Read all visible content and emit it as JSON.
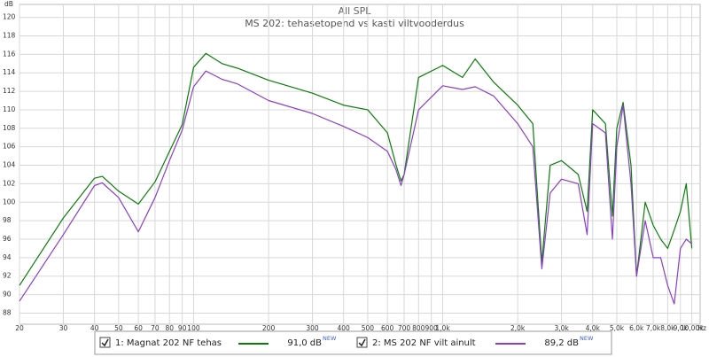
{
  "chart_data": {
    "type": "line",
    "title": "All SPL",
    "subtitle": "MS 202: tehasetopend vs kasti viltvooderdus",
    "y_label": "dB",
    "x_label": "Hz",
    "xscale": "log",
    "grid": true,
    "xlim": [
      20,
      10800
    ],
    "ylim": [
      86.8,
      121.4
    ],
    "yticks": [
      88,
      90,
      92,
      94,
      96,
      98,
      100,
      102,
      104,
      106,
      108,
      110,
      112,
      114,
      116,
      118,
      120
    ],
    "xticks": [
      20,
      30,
      40,
      50,
      60,
      70,
      80,
      90,
      100,
      200,
      300,
      400,
      500,
      600,
      700,
      800,
      900,
      {
        "value": 1000,
        "label": "1,0k"
      },
      {
        "value": 2000,
        "label": "2,0k"
      },
      {
        "value": 3000,
        "label": "3,0k"
      },
      {
        "value": 4000,
        "label": "4,0k"
      },
      {
        "value": 5000,
        "label": "5,0k"
      },
      {
        "value": 6000,
        "label": "6,0k"
      },
      {
        "value": 7000,
        "label": "7,0k"
      },
      {
        "value": 8000,
        "label": "8,0k"
      },
      {
        "value": 9000,
        "label": "9,0k"
      },
      {
        "value": 10000,
        "label": "10,00k"
      }
    ],
    "x": [
      20,
      30,
      40,
      43,
      50,
      60,
      70,
      80,
      90,
      100,
      112,
      130,
      150,
      200,
      300,
      400,
      500,
      600,
      650,
      680,
      700,
      800,
      1000,
      1200,
      1350,
      1600,
      2000,
      2300,
      2500,
      2700,
      3000,
      3500,
      3800,
      4000,
      4500,
      4800,
      5000,
      5300,
      5700,
      6000,
      6500,
      7000,
      7500,
      8000,
      8500,
      9000,
      9500,
      10000
    ],
    "series": [
      {
        "name": "1: Magnat 202 NF tehas",
        "color": "#0a7d0a",
        "level_label": "91,0 dB",
        "level_badge": "NEW",
        "values": [
          91,
          98.3,
          102.6,
          102.8,
          101.2,
          99.8,
          102.2,
          105.5,
          108.4,
          114.6,
          116.1,
          115,
          114.5,
          113.2,
          111.8,
          110.5,
          110,
          107.5,
          104,
          102.3,
          103,
          113.5,
          114.8,
          113.5,
          115.5,
          113,
          110.5,
          108.5,
          93.5,
          104,
          104.5,
          103,
          99,
          110,
          108.5,
          98.5,
          108,
          110.8,
          104,
          92,
          100,
          97.5,
          96,
          95,
          97,
          99,
          102,
          95
        ]
      },
      {
        "name": "2: MS 202 NF vilt ainult",
        "color": "#8b3fc4",
        "level_label": "89,2 dB",
        "level_badge": "NEW",
        "values": [
          89.3,
          96.5,
          101.8,
          102.1,
          100.5,
          96.8,
          100.5,
          104.5,
          107.8,
          112.5,
          114.2,
          113.3,
          112.8,
          111,
          109.6,
          108.2,
          107,
          105.5,
          103.5,
          101.8,
          103,
          110,
          112.6,
          112.2,
          112.5,
          111.5,
          108.5,
          106,
          92.8,
          101,
          102.5,
          102,
          96.5,
          108.5,
          107.5,
          96,
          106,
          110.5,
          102,
          92,
          98,
          94,
          94,
          91,
          89,
          95,
          96,
          95.5
        ]
      }
    ]
  }
}
